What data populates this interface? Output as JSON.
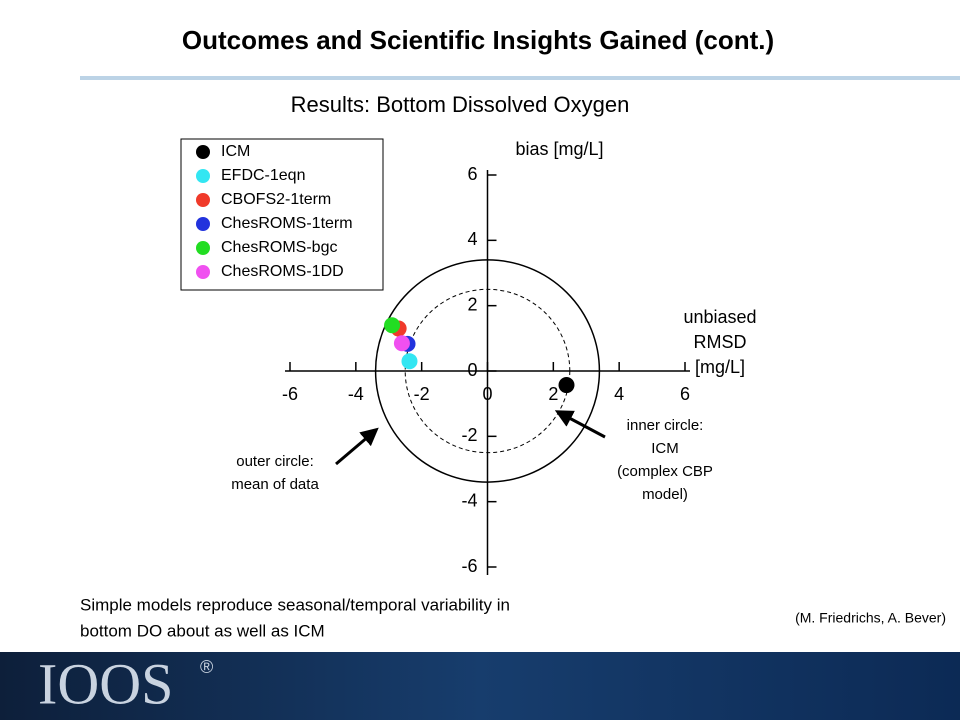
{
  "slide": {
    "title": "Outcomes and Scientific Insights Gained (cont.)",
    "body": [
      "Simple models reproduce seasonal/temporal variability in",
      "bottom DO about as well as ICM"
    ],
    "credit": "(M. Friedrichs, A. Bever)",
    "logo": "IOOS",
    "logo_mark": "®"
  },
  "chart_data": {
    "type": "scatter",
    "title": "Results: Bottom Dissolved Oxygen",
    "xlabel": [
      "unbiased",
      "RMSD",
      "[mg/L]"
    ],
    "ylabel": "bias [mg/L]",
    "xlim": [
      -6,
      6
    ],
    "ylim": [
      -6,
      6
    ],
    "xticks": [
      -6,
      -4,
      -2,
      0,
      2,
      4,
      6
    ],
    "yticks": [
      -6,
      -4,
      -2,
      0,
      2,
      4,
      6
    ],
    "legend": "top-left",
    "series": [
      {
        "name": "ICM",
        "color": "#000000",
        "x": [
          2.4
        ],
        "y": [
          -0.43
        ]
      },
      {
        "name": "EFDC-1eqn",
        "color": "#33e6f2",
        "x": [
          -2.37
        ],
        "y": [
          0.3
        ]
      },
      {
        "name": "CBOFS2-1term",
        "color": "#f03a2a",
        "x": [
          -2.7
        ],
        "y": [
          1.3
        ]
      },
      {
        "name": "ChesROMS-1term",
        "color": "#2233dd",
        "x": [
          -2.43
        ],
        "y": [
          0.83
        ]
      },
      {
        "name": "ChesROMS-bgc",
        "color": "#22dd22",
        "x": [
          -2.9
        ],
        "y": [
          1.4
        ]
      },
      {
        "name": "ChesROMS-1DD",
        "color": "#f050f0",
        "x": [
          -2.6
        ],
        "y": [
          0.85
        ]
      }
    ],
    "reference_circles": [
      {
        "radius": 3.4,
        "style": "solid"
      },
      {
        "radius": 2.5,
        "style": "dashed"
      }
    ],
    "annotations": [
      {
        "lines": [
          "outer circle:",
          "mean of data"
        ]
      },
      {
        "lines": [
          "inner circle:",
          "ICM",
          "(complex CBP",
          "model)"
        ]
      }
    ]
  }
}
